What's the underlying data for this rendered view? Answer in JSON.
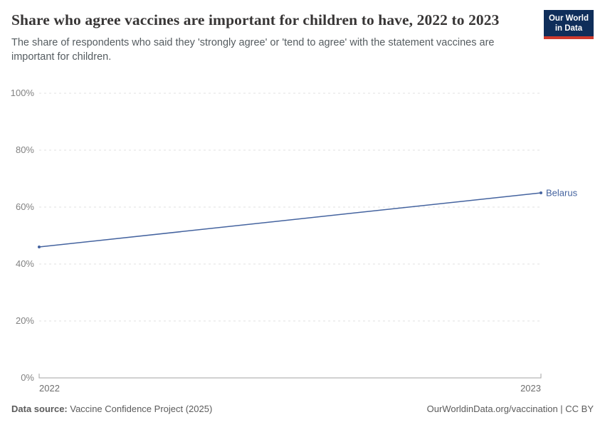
{
  "header": {
    "title": "Share who agree vaccines are important for children to have, 2022 to 2023",
    "subtitle": "The share of respondents who said they 'strongly agree' or 'tend to agree' with the statement vaccines are important for children.",
    "logo": {
      "line1": "Our World",
      "line2": "in Data"
    }
  },
  "chart_data": {
    "type": "line",
    "title": "Share who agree vaccines are important for children to have, 2022 to 2023",
    "x": [
      2022,
      2023
    ],
    "series": [
      {
        "name": "Belarus",
        "values": [
          46,
          65
        ],
        "color": "#44639f"
      }
    ],
    "xlabel": "",
    "ylabel": "",
    "ylim": [
      0,
      100
    ],
    "yticks": [
      {
        "value": 0,
        "label": "0%"
      },
      {
        "value": 20,
        "label": "20%"
      },
      {
        "value": 40,
        "label": "40%"
      },
      {
        "value": 60,
        "label": "60%"
      },
      {
        "value": 80,
        "label": "80%"
      },
      {
        "value": 100,
        "label": "100%"
      }
    ],
    "xticks": [
      "2022",
      "2023"
    ],
    "grid": "horizontal-dashed",
    "legend": "end-of-line-label"
  },
  "footer": {
    "datasource_label": "Data source:",
    "datasource_value": "Vaccine Confidence Project (2025)",
    "credit": "OurWorldinData.org/vaccination | CC BY"
  },
  "colors": {
    "line": "#44639f",
    "gridline": "#e0e0e0",
    "axis": "#a3a3a3",
    "logo_bg": "#0f2e5a",
    "logo_bar": "#cf3a2d"
  }
}
